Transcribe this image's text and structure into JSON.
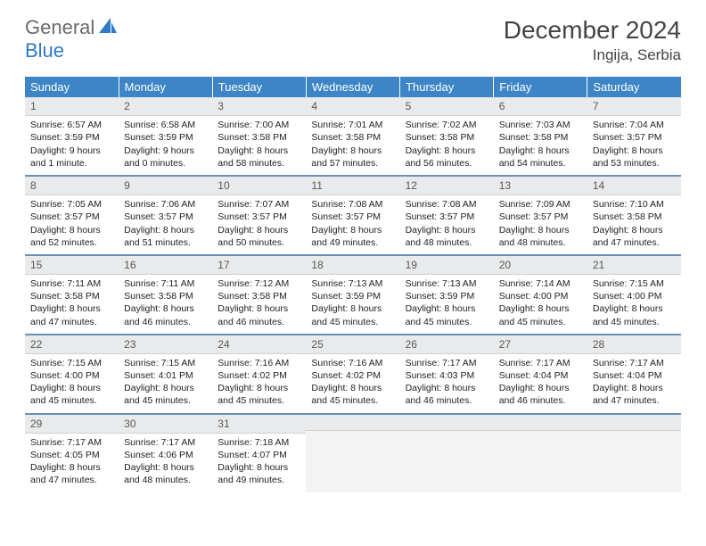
{
  "logo": {
    "part1": "General",
    "part2": "Blue",
    "icon": "sail-icon"
  },
  "title": "December 2024",
  "location": "Ingija, Serbia",
  "colors": {
    "header_bg": "#3d85c6",
    "header_text": "#ffffff",
    "daynum_bg": "#e9eaeb",
    "row_divider": "#6a8fb5",
    "logo_gray": "#6a6a6a",
    "logo_blue": "#2f7ac6"
  },
  "weekdays": [
    "Sunday",
    "Monday",
    "Tuesday",
    "Wednesday",
    "Thursday",
    "Friday",
    "Saturday"
  ],
  "weeks": [
    [
      {
        "n": "1",
        "sr": "Sunrise: 6:57 AM",
        "ss": "Sunset: 3:59 PM",
        "dl": "Daylight: 9 hours and 1 minute."
      },
      {
        "n": "2",
        "sr": "Sunrise: 6:58 AM",
        "ss": "Sunset: 3:59 PM",
        "dl": "Daylight: 9 hours and 0 minutes."
      },
      {
        "n": "3",
        "sr": "Sunrise: 7:00 AM",
        "ss": "Sunset: 3:58 PM",
        "dl": "Daylight: 8 hours and 58 minutes."
      },
      {
        "n": "4",
        "sr": "Sunrise: 7:01 AM",
        "ss": "Sunset: 3:58 PM",
        "dl": "Daylight: 8 hours and 57 minutes."
      },
      {
        "n": "5",
        "sr": "Sunrise: 7:02 AM",
        "ss": "Sunset: 3:58 PM",
        "dl": "Daylight: 8 hours and 56 minutes."
      },
      {
        "n": "6",
        "sr": "Sunrise: 7:03 AM",
        "ss": "Sunset: 3:58 PM",
        "dl": "Daylight: 8 hours and 54 minutes."
      },
      {
        "n": "7",
        "sr": "Sunrise: 7:04 AM",
        "ss": "Sunset: 3:57 PM",
        "dl": "Daylight: 8 hours and 53 minutes."
      }
    ],
    [
      {
        "n": "8",
        "sr": "Sunrise: 7:05 AM",
        "ss": "Sunset: 3:57 PM",
        "dl": "Daylight: 8 hours and 52 minutes."
      },
      {
        "n": "9",
        "sr": "Sunrise: 7:06 AM",
        "ss": "Sunset: 3:57 PM",
        "dl": "Daylight: 8 hours and 51 minutes."
      },
      {
        "n": "10",
        "sr": "Sunrise: 7:07 AM",
        "ss": "Sunset: 3:57 PM",
        "dl": "Daylight: 8 hours and 50 minutes."
      },
      {
        "n": "11",
        "sr": "Sunrise: 7:08 AM",
        "ss": "Sunset: 3:57 PM",
        "dl": "Daylight: 8 hours and 49 minutes."
      },
      {
        "n": "12",
        "sr": "Sunrise: 7:08 AM",
        "ss": "Sunset: 3:57 PM",
        "dl": "Daylight: 8 hours and 48 minutes."
      },
      {
        "n": "13",
        "sr": "Sunrise: 7:09 AM",
        "ss": "Sunset: 3:57 PM",
        "dl": "Daylight: 8 hours and 48 minutes."
      },
      {
        "n": "14",
        "sr": "Sunrise: 7:10 AM",
        "ss": "Sunset: 3:58 PM",
        "dl": "Daylight: 8 hours and 47 minutes."
      }
    ],
    [
      {
        "n": "15",
        "sr": "Sunrise: 7:11 AM",
        "ss": "Sunset: 3:58 PM",
        "dl": "Daylight: 8 hours and 47 minutes."
      },
      {
        "n": "16",
        "sr": "Sunrise: 7:11 AM",
        "ss": "Sunset: 3:58 PM",
        "dl": "Daylight: 8 hours and 46 minutes."
      },
      {
        "n": "17",
        "sr": "Sunrise: 7:12 AM",
        "ss": "Sunset: 3:58 PM",
        "dl": "Daylight: 8 hours and 46 minutes."
      },
      {
        "n": "18",
        "sr": "Sunrise: 7:13 AM",
        "ss": "Sunset: 3:59 PM",
        "dl": "Daylight: 8 hours and 45 minutes."
      },
      {
        "n": "19",
        "sr": "Sunrise: 7:13 AM",
        "ss": "Sunset: 3:59 PM",
        "dl": "Daylight: 8 hours and 45 minutes."
      },
      {
        "n": "20",
        "sr": "Sunrise: 7:14 AM",
        "ss": "Sunset: 4:00 PM",
        "dl": "Daylight: 8 hours and 45 minutes."
      },
      {
        "n": "21",
        "sr": "Sunrise: 7:15 AM",
        "ss": "Sunset: 4:00 PM",
        "dl": "Daylight: 8 hours and 45 minutes."
      }
    ],
    [
      {
        "n": "22",
        "sr": "Sunrise: 7:15 AM",
        "ss": "Sunset: 4:00 PM",
        "dl": "Daylight: 8 hours and 45 minutes."
      },
      {
        "n": "23",
        "sr": "Sunrise: 7:15 AM",
        "ss": "Sunset: 4:01 PM",
        "dl": "Daylight: 8 hours and 45 minutes."
      },
      {
        "n": "24",
        "sr": "Sunrise: 7:16 AM",
        "ss": "Sunset: 4:02 PM",
        "dl": "Daylight: 8 hours and 45 minutes."
      },
      {
        "n": "25",
        "sr": "Sunrise: 7:16 AM",
        "ss": "Sunset: 4:02 PM",
        "dl": "Daylight: 8 hours and 45 minutes."
      },
      {
        "n": "26",
        "sr": "Sunrise: 7:17 AM",
        "ss": "Sunset: 4:03 PM",
        "dl": "Daylight: 8 hours and 46 minutes."
      },
      {
        "n": "27",
        "sr": "Sunrise: 7:17 AM",
        "ss": "Sunset: 4:04 PM",
        "dl": "Daylight: 8 hours and 46 minutes."
      },
      {
        "n": "28",
        "sr": "Sunrise: 7:17 AM",
        "ss": "Sunset: 4:04 PM",
        "dl": "Daylight: 8 hours and 47 minutes."
      }
    ],
    [
      {
        "n": "29",
        "sr": "Sunrise: 7:17 AM",
        "ss": "Sunset: 4:05 PM",
        "dl": "Daylight: 8 hours and 47 minutes."
      },
      {
        "n": "30",
        "sr": "Sunrise: 7:17 AM",
        "ss": "Sunset: 4:06 PM",
        "dl": "Daylight: 8 hours and 48 minutes."
      },
      {
        "n": "31",
        "sr": "Sunrise: 7:18 AM",
        "ss": "Sunset: 4:07 PM",
        "dl": "Daylight: 8 hours and 49 minutes."
      },
      null,
      null,
      null,
      null
    ]
  ]
}
